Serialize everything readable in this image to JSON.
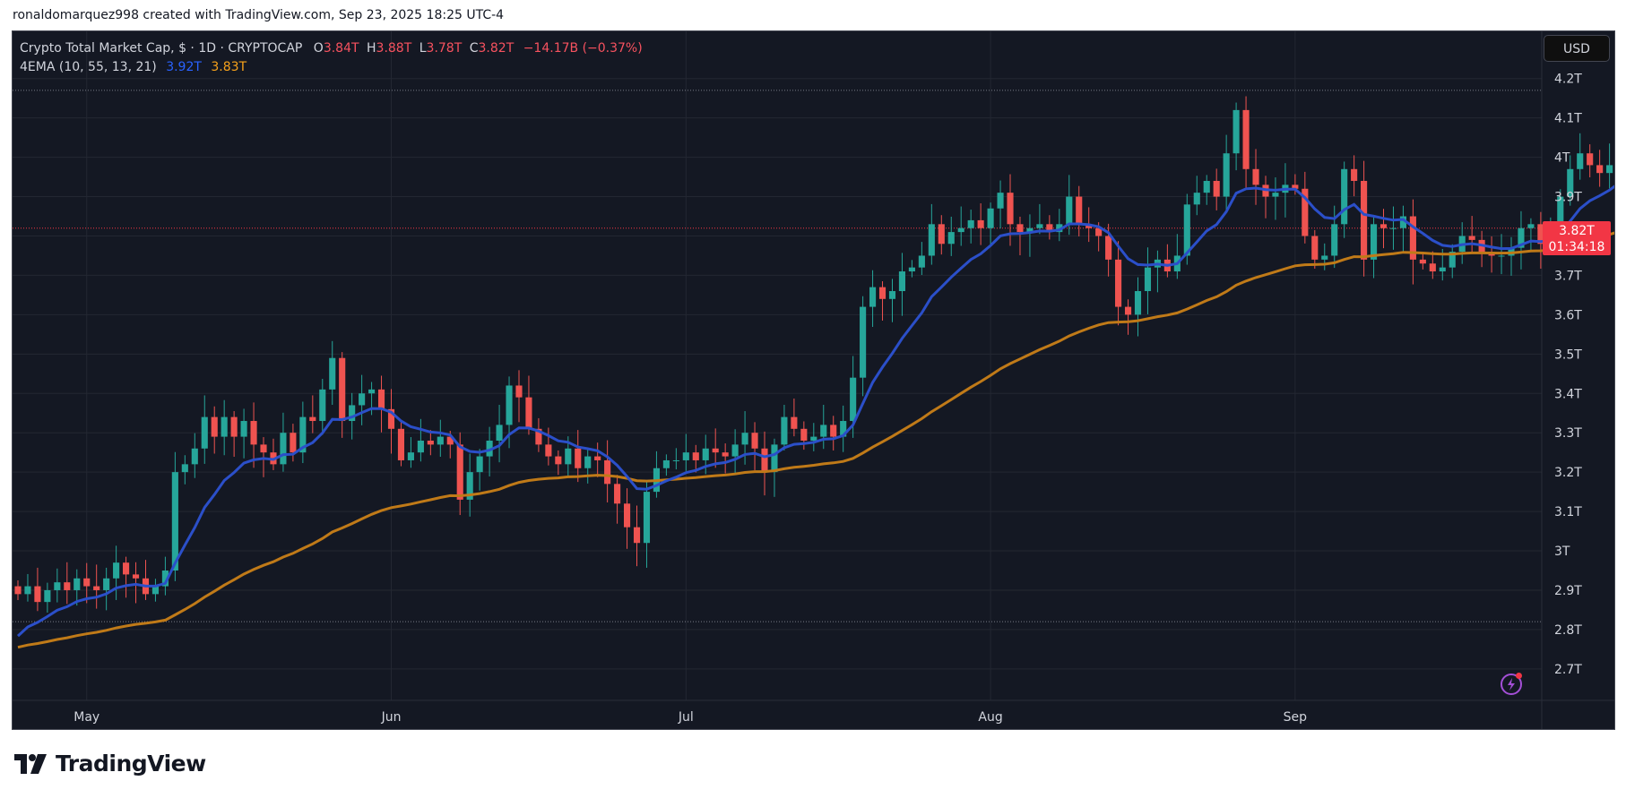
{
  "header": {
    "text": "ronaldomarquez998 created with TradingView.com, Sep 23, 2025 18:25 UTC-4"
  },
  "legend": {
    "symbol": "Crypto Total Market Cap, $ · 1D · CRYPTOCAP",
    "o_label": "O",
    "o_value": "3.84T",
    "h_label": "H",
    "h_value": "3.88T",
    "l_label": "L",
    "l_value": "3.78T",
    "c_label": "C",
    "c_value": "3.82T",
    "change": "−14.17B (−0.37%)",
    "indicator_name": "4EMA (10, 55, 13, 21)",
    "ema_fast_value": "3.92T",
    "ema_slow_value": "3.83T"
  },
  "currency": "USD",
  "price_tag": {
    "price": "3.82T",
    "countdown": "01:34:18"
  },
  "logo": {
    "icon": "tradingview-logo-icon",
    "text": "TradingView"
  },
  "colors": {
    "background": "#141823",
    "up": "#26a69a",
    "down": "#ef5350",
    "ema_fast": "#2b4fc9",
    "ema_slow": "#c07a18",
    "grid": "#232732",
    "axis_text": "#d1d4dc"
  },
  "chart_data": {
    "type": "candlestick",
    "title": "Crypto Total Market Cap, $ · 1D · CRYPTOCAP",
    "y_unit": "T",
    "y_range": [
      2.62,
      4.32
    ],
    "y_ticks": [
      "4.2T",
      "4.1T",
      "4T",
      "3.9T",
      "3.8T",
      "3.7T",
      "3.6T",
      "3.5T",
      "3.4T",
      "3.3T",
      "3.2T",
      "3.1T",
      "3T",
      "2.9T",
      "2.8T",
      "2.7T"
    ],
    "y_tick_values": [
      4.2,
      4.1,
      4.0,
      3.9,
      3.8,
      3.7,
      3.6,
      3.5,
      3.4,
      3.3,
      3.2,
      3.1,
      3.0,
      2.9,
      2.8,
      2.7
    ],
    "x_labels": [
      {
        "label": "May",
        "date": "2025-05-01"
      },
      {
        "label": "Jun",
        "date": "2025-06-01"
      },
      {
        "label": "Jul",
        "date": "2025-07-01"
      },
      {
        "label": "Aug",
        "date": "2025-08-01"
      },
      {
        "label": "Sep",
        "date": "2025-09-01"
      }
    ],
    "first_date": "2025-04-24",
    "last_date": "2025-09-23",
    "dotted_levels": [
      4.17,
      2.82
    ],
    "current_price_line": 3.82,
    "closes": [
      2.89,
      2.91,
      2.87,
      2.9,
      2.92,
      2.9,
      2.93,
      2.91,
      2.9,
      2.93,
      2.97,
      2.94,
      2.93,
      2.89,
      2.91,
      2.95,
      3.2,
      3.22,
      3.26,
      3.34,
      3.29,
      3.34,
      3.29,
      3.33,
      3.27,
      3.25,
      3.22,
      3.3,
      3.25,
      3.34,
      3.33,
      3.41,
      3.49,
      3.33,
      3.37,
      3.4,
      3.41,
      3.36,
      3.31,
      3.23,
      3.25,
      3.28,
      3.27,
      3.29,
      3.27,
      3.13,
      3.2,
      3.24,
      3.28,
      3.32,
      3.42,
      3.39,
      3.31,
      3.27,
      3.24,
      3.22,
      3.26,
      3.21,
      3.24,
      3.23,
      3.17,
      3.12,
      3.06,
      3.02,
      3.15,
      3.21,
      3.23,
      3.23,
      3.25,
      3.23,
      3.26,
      3.25,
      3.24,
      3.27,
      3.3,
      3.26,
      3.2,
      3.27,
      3.34,
      3.31,
      3.28,
      3.29,
      3.32,
      3.29,
      3.33,
      3.44,
      3.62,
      3.67,
      3.64,
      3.66,
      3.71,
      3.72,
      3.75,
      3.83,
      3.78,
      3.81,
      3.82,
      3.84,
      3.82,
      3.87,
      3.91,
      3.83,
      3.81,
      3.82,
      3.83,
      3.81,
      3.83,
      3.9,
      3.83,
      3.82,
      3.8,
      3.74,
      3.62,
      3.6,
      3.66,
      3.72,
      3.74,
      3.71,
      3.75,
      3.88,
      3.91,
      3.94,
      3.9,
      4.01,
      4.12,
      3.97,
      3.93,
      3.9,
      3.91,
      3.93,
      3.92,
      3.8,
      3.74,
      3.75,
      3.83,
      3.97,
      3.94,
      3.74,
      3.83,
      3.82,
      3.82,
      3.85,
      3.74,
      3.73,
      3.71,
      3.72,
      3.76,
      3.8,
      3.79,
      3.76,
      3.75,
      3.75,
      3.77,
      3.82,
      3.83,
      3.78,
      3.8,
      3.9,
      3.97,
      4.01,
      3.98,
      3.96,
      3.98,
      4.02,
      4.03,
      3.96,
      3.96,
      3.97,
      3.84,
      3.82
    ]
  }
}
